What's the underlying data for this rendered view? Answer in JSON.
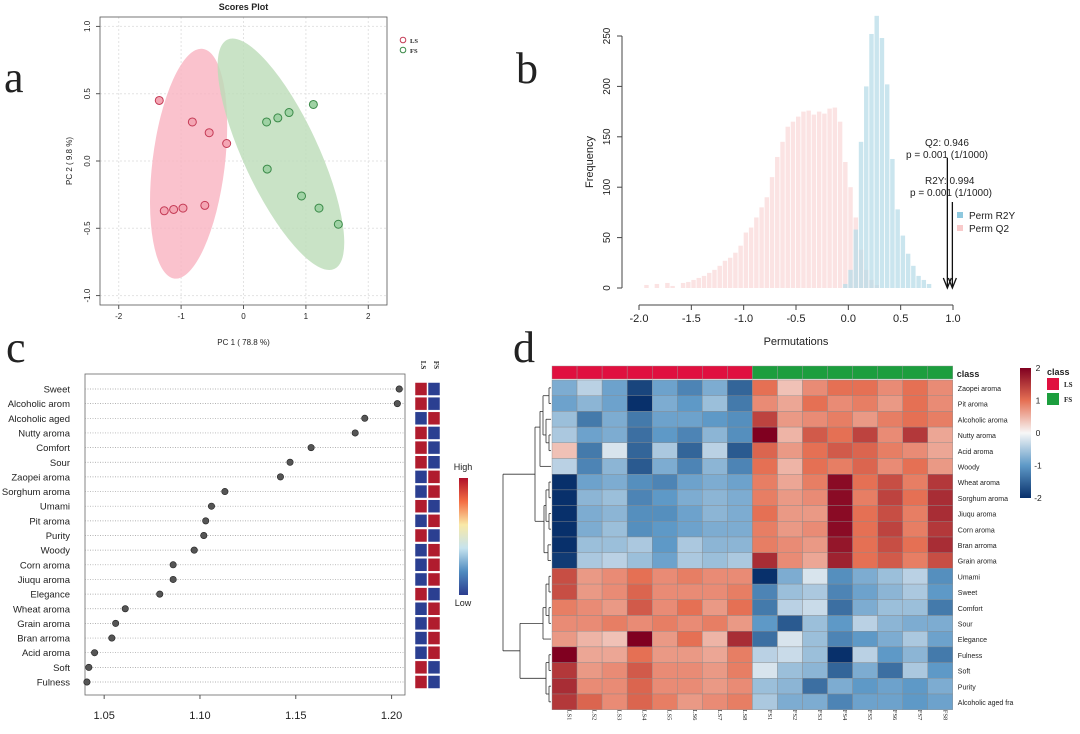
{
  "panel_letters": [
    "a",
    "b",
    "c",
    "d"
  ],
  "chart_data": [
    {
      "panel": "a",
      "type": "scatter",
      "title": "Scores Plot",
      "xlabel": "PC 1 ( 78.8 %)",
      "ylabel": "PC 2 ( 9.8 %)",
      "xlim": [
        -2.3,
        2.3
      ],
      "ylim": [
        -1.07,
        1.07
      ],
      "xticks": [
        "-2",
        "-1",
        "0",
        "1",
        "2"
      ],
      "yticks": [
        "-1.0",
        "-0.5",
        "0.0",
        "0.5",
        "1.0"
      ],
      "grid": true,
      "legend_position": "top-right",
      "series": [
        {
          "name": "LS",
          "color": "#f4a6b4",
          "stroke": "#c43a55",
          "points": [
            [
              -1.35,
              0.45
            ],
            [
              -0.82,
              0.29
            ],
            [
              -0.55,
              0.21
            ],
            [
              -0.27,
              0.13
            ],
            [
              -1.27,
              -0.37
            ],
            [
              -1.12,
              -0.36
            ],
            [
              -0.97,
              -0.35
            ],
            [
              -0.62,
              -0.33
            ]
          ]
        },
        {
          "name": "FS",
          "color": "#9fd2a4",
          "stroke": "#3a8a48",
          "points": [
            [
              0.37,
              0.29
            ],
            [
              0.55,
              0.32
            ],
            [
              0.73,
              0.36
            ],
            [
              1.12,
              0.42
            ],
            [
              0.38,
              -0.06
            ],
            [
              0.93,
              -0.26
            ],
            [
              1.21,
              -0.35
            ],
            [
              1.52,
              -0.47
            ]
          ]
        }
      ],
      "ellipses": [
        {
          "series": "LS",
          "fill": "#f9b3c0",
          "cx": -0.88,
          "cy": -0.02,
          "rx": 0.58,
          "ry": 0.86,
          "angle": 7
        },
        {
          "series": "FS",
          "fill": "#bcdcb8",
          "cx": 0.6,
          "cy": 0.05,
          "rx": 0.6,
          "ry": 0.94,
          "angle": -25
        }
      ]
    },
    {
      "panel": "b",
      "type": "bar",
      "xlabel": "Permutations",
      "ylabel": "Frequency",
      "xlim": [
        -2.1,
        1.02
      ],
      "ylim": [
        0,
        275
      ],
      "xticks": [
        "-2.0",
        "-1.5",
        "-1.0",
        "-0.5",
        "0.0",
        "0.5",
        "1.0"
      ],
      "yticks": [
        "0",
        "50",
        "100",
        "150",
        "200",
        "250"
      ],
      "legend_position": "right",
      "series": [
        {
          "name": "Perm R2Y",
          "color": "#b8dce8",
          "bins": [
            [
              -0.05,
              4
            ],
            [
              0.0,
              18
            ],
            [
              0.05,
              58
            ],
            [
              0.1,
              145
            ],
            [
              0.15,
              200
            ],
            [
              0.2,
              252
            ],
            [
              0.25,
              270
            ],
            [
              0.3,
              248
            ],
            [
              0.35,
              202
            ],
            [
              0.4,
              128
            ],
            [
              0.45,
              78
            ],
            [
              0.5,
              52
            ],
            [
              0.55,
              34
            ],
            [
              0.6,
              22
            ],
            [
              0.65,
              12
            ],
            [
              0.7,
              8
            ],
            [
              0.75,
              4
            ]
          ]
        },
        {
          "name": "Perm Q2",
          "color": "#fbe0e0",
          "bins": [
            [
              -1.95,
              3
            ],
            [
              -1.85,
              4
            ],
            [
              -1.75,
              5
            ],
            [
              -1.7,
              2
            ],
            [
              -1.6,
              5
            ],
            [
              -1.55,
              6
            ],
            [
              -1.5,
              8
            ],
            [
              -1.45,
              10
            ],
            [
              -1.4,
              12
            ],
            [
              -1.35,
              15
            ],
            [
              -1.3,
              18
            ],
            [
              -1.25,
              22
            ],
            [
              -1.2,
              27
            ],
            [
              -1.15,
              30
            ],
            [
              -1.1,
              35
            ],
            [
              -1.05,
              42
            ],
            [
              -1.0,
              55
            ],
            [
              -0.95,
              60
            ],
            [
              -0.9,
              70
            ],
            [
              -0.85,
              80
            ],
            [
              -0.8,
              90
            ],
            [
              -0.75,
              110
            ],
            [
              -0.7,
              130
            ],
            [
              -0.65,
              145
            ],
            [
              -0.6,
              160
            ],
            [
              -0.55,
              165
            ],
            [
              -0.5,
              170
            ],
            [
              -0.45,
              175
            ],
            [
              -0.4,
              176
            ],
            [
              -0.35,
              172
            ],
            [
              -0.3,
              175
            ],
            [
              -0.25,
              173
            ],
            [
              -0.2,
              178
            ],
            [
              -0.15,
              179
            ],
            [
              -0.1,
              165
            ],
            [
              -0.05,
              125
            ],
            [
              0.0,
              100
            ],
            [
              0.05,
              70
            ],
            [
              0.1,
              38
            ],
            [
              0.15,
              18
            ],
            [
              0.2,
              8
            ],
            [
              0.25,
              3
            ]
          ]
        }
      ],
      "annotations": [
        {
          "text": "Q2: 0.946",
          "x": 0.946
        },
        {
          "text": "p = 0.001 (1/1000)",
          "x": 0.946
        },
        {
          "text": "R2Y: 0.994",
          "x": 0.994
        },
        {
          "text": "p = 0.001 (1/1000)",
          "x": 0.994
        }
      ]
    },
    {
      "panel": "c",
      "type": "scatter",
      "xlim": [
        1.04,
        1.207
      ],
      "xticks": [
        "1.05",
        "1.10",
        "1.15",
        "1.20"
      ],
      "categories": [
        "Sweet",
        "Alcoholic arom",
        "Alcoholic aged",
        "Nutty aroma",
        "Comfort",
        "Sour",
        "Zaopei aroma",
        "Sorghum aroma",
        "Umami",
        "Pit aroma",
        "Purity",
        "Woody",
        "Corn aroma",
        "Jiuqu aroma",
        "Elegance",
        "Wheat aroma",
        "Grain aroma",
        "Bran arroma",
        "Acid aroma",
        "Soft",
        "Fulness"
      ],
      "values": [
        1.204,
        1.203,
        1.186,
        1.181,
        1.158,
        1.147,
        1.142,
        1.113,
        1.106,
        1.103,
        1.102,
        1.097,
        1.086,
        1.086,
        1.079,
        1.061,
        1.056,
        1.054,
        1.045,
        1.042,
        1.041
      ],
      "group_labels": [
        "LS",
        "FS"
      ],
      "group_ls_high": [
        true,
        true,
        false,
        true,
        true,
        true,
        false,
        false,
        true,
        false,
        true,
        false,
        false,
        false,
        true,
        false,
        false,
        false,
        false,
        true,
        true
      ],
      "colorbar": {
        "high": "High",
        "low": "Low",
        "colors": [
          "#2c3d8f",
          "#4f8bc0",
          "#c6e3ee",
          "#f9e9a7",
          "#f46d43",
          "#b0102a"
        ]
      }
    },
    {
      "panel": "d",
      "type": "heatmap",
      "columns": [
        "LS1",
        "LS2",
        "LS3",
        "LS4",
        "LS5",
        "LS6",
        "LS7",
        "LS8",
        "FS1",
        "FS2",
        "FS3",
        "FS4",
        "FS5",
        "FS6",
        "FS7",
        "FS8"
      ],
      "column_class": [
        "LS",
        "LS",
        "LS",
        "LS",
        "LS",
        "LS",
        "LS",
        "LS",
        "FS",
        "FS",
        "FS",
        "FS",
        "FS",
        "FS",
        "FS",
        "FS"
      ],
      "class_label": "class",
      "rows": [
        "Zaopei aroma",
        "Pit aroma",
        "Alcoholic aroma",
        "Nutty aroma",
        "Acid aroma",
        "Woody",
        "Wheat aroma",
        "Sorghum aroma",
        "Jiuqu aroma",
        "Corn aroma",
        "Bran arroma",
        "Grain aroma",
        "Umami",
        "Sweet",
        "Comfort",
        "Sour",
        "Elegance",
        "Fulness",
        "Soft",
        "Purity",
        "Alcoholic aged fra"
      ],
      "values": [
        [
          -0.8,
          -0.4,
          -0.9,
          -1.8,
          -0.9,
          -1.2,
          -0.8,
          -1.5,
          1.0,
          0.4,
          0.8,
          1.0,
          1.0,
          0.8,
          1.0,
          0.8
        ],
        [
          -0.9,
          -0.7,
          -0.9,
          -2.2,
          -0.8,
          -1.0,
          -0.6,
          -1.3,
          0.8,
          0.6,
          1.0,
          0.8,
          0.9,
          0.7,
          1.0,
          0.8
        ],
        [
          -0.6,
          -1.3,
          -0.8,
          -1.3,
          -0.9,
          -0.9,
          -1.0,
          -1.1,
          1.4,
          0.7,
          0.8,
          0.9,
          0.7,
          0.9,
          1.0,
          0.9
        ],
        [
          -0.5,
          -0.9,
          -0.8,
          -1.4,
          -1.0,
          -1.2,
          -0.7,
          -1.1,
          2.0,
          0.5,
          1.2,
          1.0,
          1.4,
          0.8,
          1.5,
          0.6
        ],
        [
          0.4,
          -1.3,
          -0.2,
          -1.5,
          -0.5,
          -1.5,
          -0.4,
          -1.6,
          1.1,
          0.7,
          1.0,
          1.2,
          1.1,
          0.9,
          0.8,
          0.6
        ],
        [
          -0.4,
          -1.2,
          -0.7,
          -1.6,
          -0.8,
          -1.2,
          -0.7,
          -1.2,
          1.0,
          0.5,
          1.0,
          0.9,
          1.1,
          0.8,
          1.0,
          0.7
        ],
        [
          -2.0,
          -0.9,
          -0.8,
          -1.1,
          -1.2,
          -0.9,
          -0.8,
          -0.9,
          0.9,
          0.6,
          0.9,
          1.9,
          1.0,
          1.3,
          0.9,
          1.5
        ],
        [
          -2.0,
          -0.7,
          -0.6,
          -1.2,
          -1.0,
          -0.8,
          -0.7,
          -0.8,
          0.9,
          0.7,
          0.8,
          1.9,
          0.9,
          1.4,
          1.0,
          1.6
        ],
        [
          -2.0,
          -0.8,
          -0.7,
          -1.1,
          -1.1,
          -0.9,
          -0.7,
          -0.8,
          1.0,
          0.7,
          0.7,
          1.9,
          1.0,
          1.3,
          0.9,
          1.6
        ],
        [
          -2.0,
          -0.8,
          -0.6,
          -1.1,
          -1.0,
          -0.9,
          -0.8,
          -0.8,
          0.9,
          0.7,
          0.8,
          1.9,
          1.0,
          1.4,
          0.9,
          1.5
        ],
        [
          -2.0,
          -0.6,
          -0.6,
          -0.5,
          -1.0,
          -0.5,
          -0.7,
          -0.7,
          0.9,
          0.8,
          0.7,
          1.8,
          1.0,
          1.3,
          1.0,
          1.6
        ],
        [
          -1.9,
          -0.5,
          -0.4,
          -0.6,
          -0.9,
          -0.5,
          -0.6,
          -0.5,
          1.6,
          0.8,
          0.6,
          1.7,
          1.0,
          1.2,
          0.9,
          1.3
        ],
        [
          1.3,
          0.7,
          0.8,
          1.0,
          0.8,
          0.9,
          0.8,
          0.8,
          -2.0,
          -0.8,
          -0.2,
          -1.1,
          -0.8,
          -0.6,
          -0.4,
          -1.1
        ],
        [
          1.3,
          0.7,
          0.8,
          1.1,
          0.8,
          0.8,
          0.8,
          0.9,
          -1.2,
          -0.6,
          -0.5,
          -1.2,
          -0.9,
          -0.7,
          -0.5,
          -1.0
        ],
        [
          0.9,
          0.8,
          0.7,
          1.2,
          0.8,
          1.0,
          0.7,
          1.0,
          -1.3,
          -0.4,
          -0.3,
          -1.4,
          -0.8,
          -0.6,
          -0.6,
          -1.3
        ],
        [
          0.8,
          0.8,
          0.9,
          0.8,
          0.9,
          0.8,
          0.9,
          0.7,
          -1.0,
          -1.6,
          -0.6,
          -1.0,
          -0.4,
          -0.7,
          -0.8,
          -0.8
        ],
        [
          0.7,
          0.5,
          0.4,
          2.0,
          0.7,
          1.0,
          0.5,
          1.6,
          -1.4,
          -0.2,
          -0.6,
          -1.2,
          -1.0,
          -0.8,
          -0.5,
          -0.9
        ],
        [
          2.0,
          0.6,
          0.6,
          1.0,
          0.7,
          0.7,
          0.6,
          0.9,
          -0.4,
          -0.3,
          -0.6,
          -2.0,
          -0.4,
          -1.0,
          -0.7,
          -1.3
        ],
        [
          1.5,
          0.7,
          0.8,
          1.2,
          0.8,
          0.8,
          0.7,
          0.9,
          -0.2,
          -0.6,
          -0.7,
          -1.5,
          -0.8,
          -1.4,
          -0.5,
          -1.0
        ],
        [
          1.6,
          0.8,
          0.8,
          1.1,
          0.8,
          0.8,
          0.7,
          0.8,
          -0.6,
          -0.7,
          -1.4,
          -0.8,
          -1.0,
          -0.9,
          -1.0,
          -0.8
        ],
        [
          1.5,
          1.1,
          0.8,
          1.1,
          0.9,
          0.7,
          0.8,
          0.9,
          -0.5,
          -0.8,
          -0.8,
          -1.2,
          -0.9,
          -0.9,
          -1.0,
          -0.9
        ]
      ],
      "colorbar": {
        "ticks": [
          "2",
          "1",
          "0",
          "-1",
          "-2"
        ],
        "min": -2,
        "max": 2
      },
      "legend": {
        "title": "class",
        "items": [
          {
            "name": "LS",
            "color": "#e0103f"
          },
          {
            "name": "FS",
            "color": "#1c9e3e"
          }
        ]
      },
      "class_colors": {
        "LS": "#e0103f",
        "FS": "#1c9e3e"
      }
    }
  ]
}
